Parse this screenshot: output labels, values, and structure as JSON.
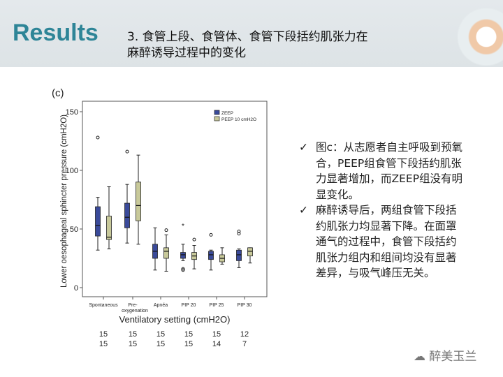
{
  "header": {
    "title": "Results",
    "subtitle_line1": "3. 食管上段、食管体、食管下段括约肌张力在",
    "subtitle_line2": "麻醉诱导过程中的变化"
  },
  "bullets": [
    {
      "icon": "check-icon",
      "text": "图c：从志愿者自主呼吸到预氧合，PEEP组食管下段括约肌张力显著增加，而ZEEP组没有明显变化。"
    },
    {
      "icon": "check-icon",
      "text": "麻醉诱导后，两组食管下段括约肌张力均显著下降。在面罩通气的过程中，食管下段括约肌张力组内和组间均没有显著差异，与吸气峰压无关。"
    }
  ],
  "watermark": "醉美玉兰",
  "colors": {
    "title": "#2e8597",
    "zeep": "#3a4a9a",
    "peep": "#c8c99a"
  },
  "chart_data": {
    "type": "box",
    "panel_label": "(c)",
    "xlabel": "Ventilatory setting (cmH2O)",
    "ylabel": "Lower oesophageal sphincter pressure (cmH2O)",
    "ylim": [
      -5,
      160
    ],
    "yticks": [
      0,
      50,
      100,
      150
    ],
    "categories": [
      "Spontaneous",
      "Pre-oxygenation",
      "Apnéa",
      "PIP 20",
      "PIP 25",
      "PIP 30"
    ],
    "legend": {
      "position": "top-right",
      "entries": [
        "ZEEP",
        "PEEP 10 cmH2O"
      ]
    },
    "series": [
      {
        "name": "ZEEP",
        "color": "#3a4a9a",
        "n": [
          15,
          15,
          15,
          15,
          15,
          12
        ],
        "boxes": [
          {
            "low": 32,
            "q1": 44,
            "median": 53,
            "q3": 69,
            "high": 77,
            "outliers": [
              128
            ]
          },
          {
            "low": 38,
            "q1": 51,
            "median": 60,
            "q3": 72,
            "high": 88,
            "outliers": [
              116
            ]
          },
          {
            "low": 15,
            "q1": 25,
            "median": 31,
            "q3": 37,
            "high": 51,
            "outliers": []
          },
          {
            "low": 23,
            "q1": 25,
            "median": 28,
            "q3": 30,
            "high": 37,
            "outliers": [
              16,
              15
            ],
            "extremes": [
              53
            ]
          },
          {
            "low": 15,
            "q1": 24,
            "median": 28,
            "q3": 31,
            "high": 32,
            "outliers": [
              45
            ]
          },
          {
            "low": 17,
            "q1": 23,
            "median": 28,
            "q3": 32,
            "high": 33,
            "outliers": [
              46,
              48
            ]
          }
        ]
      },
      {
        "name": "PEEP 10 cmH2O",
        "color": "#c8c99a",
        "n": [
          15,
          15,
          15,
          15,
          14,
          7
        ],
        "boxes": [
          {
            "low": 33,
            "q1": 41,
            "median": 43,
            "q3": 61,
            "high": 86,
            "outliers": []
          },
          {
            "low": 37,
            "q1": 57,
            "median": 70,
            "q3": 90,
            "high": 113,
            "outliers": []
          },
          {
            "low": 14,
            "q1": 25,
            "median": 31,
            "q3": 34,
            "high": 45,
            "outliers": [
              49
            ]
          },
          {
            "low": 16,
            "q1": 24,
            "median": 27,
            "q3": 30,
            "high": 36,
            "outliers": [
              41
            ]
          },
          {
            "low": 20,
            "q1": 22,
            "median": 25,
            "q3": 28,
            "high": 34,
            "outliers": []
          },
          {
            "low": 21,
            "q1": 27,
            "median": 31,
            "q3": 34,
            "high": 34,
            "outliers": []
          }
        ]
      }
    ]
  }
}
